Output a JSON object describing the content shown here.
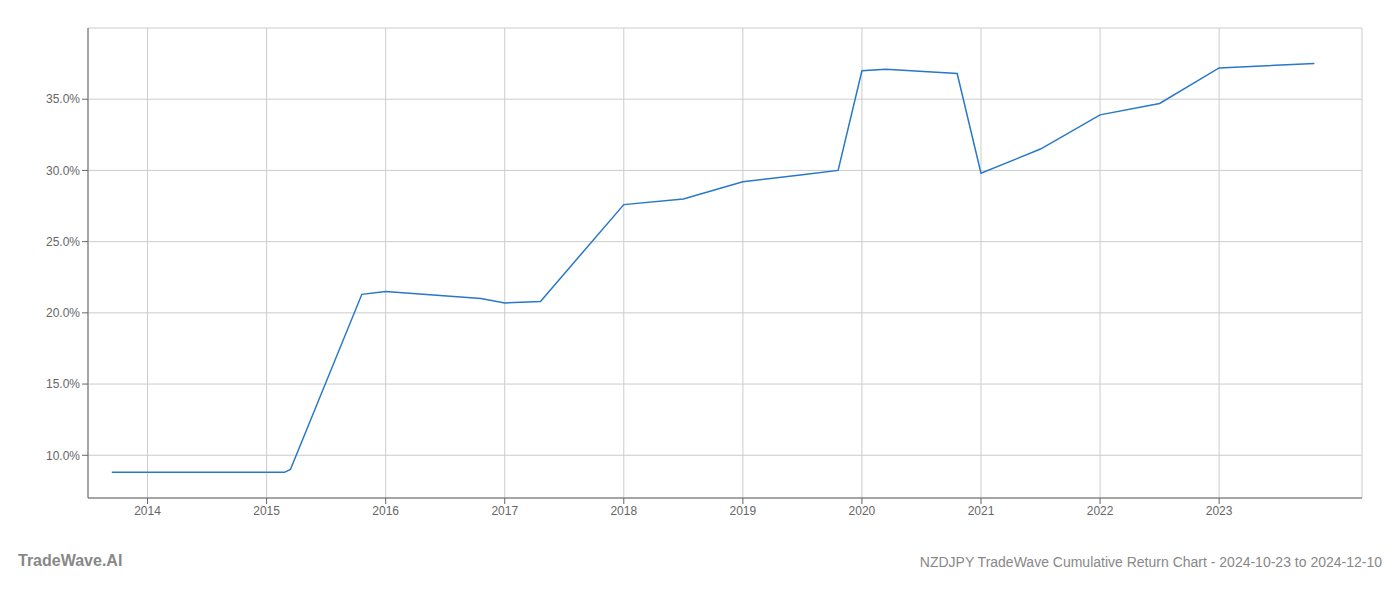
{
  "chart_data": {
    "type": "line",
    "title": "NZDJPY TradeWave Cumulative Return Chart - 2024-10-23 to 2024-12-10",
    "annotations": [
      "TradeWave.AI"
    ],
    "x": [
      2013.7,
      2014.0,
      2015.0,
      2015.15,
      2015.2,
      2015.8,
      2016.0,
      2016.8,
      2017.0,
      2017.3,
      2018.0,
      2018.5,
      2019.0,
      2019.5,
      2019.8,
      2020.0,
      2020.2,
      2020.8,
      2021.0,
      2021.5,
      2022.0,
      2022.5,
      2023.0,
      2023.8
    ],
    "values": [
      8.8,
      8.8,
      8.8,
      8.8,
      9.0,
      21.3,
      21.5,
      21.0,
      20.7,
      20.8,
      27.6,
      28.0,
      29.2,
      29.7,
      30.0,
      37.0,
      37.1,
      36.8,
      29.8,
      31.5,
      33.9,
      34.7,
      37.2,
      37.5
    ],
    "color": "#2878c8",
    "xlim": [
      2013.5,
      2024.2
    ],
    "ylim": [
      7.0,
      40.0
    ],
    "xticks": [
      2014,
      2015,
      2016,
      2017,
      2018,
      2019,
      2020,
      2021,
      2022,
      2023
    ],
    "yticks": [
      {
        "value": 10.0,
        "label": "10.0%"
      },
      {
        "value": 15.0,
        "label": "15.0%"
      },
      {
        "value": 20.0,
        "label": "20.0%"
      },
      {
        "value": 25.0,
        "label": "25.0%"
      },
      {
        "value": 30.0,
        "label": "30.0%"
      },
      {
        "value": 35.0,
        "label": "35.0%"
      }
    ],
    "grid": true
  }
}
